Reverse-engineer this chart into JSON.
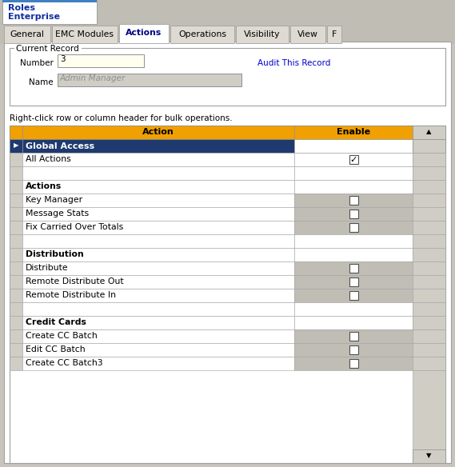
{
  "fig_width": 5.69,
  "fig_height": 5.84,
  "dpi": 100,
  "bg_color": "#c8c4bc",
  "tabs": [
    "General",
    "EMC Modules",
    "Actions",
    "Operations",
    "Visibility",
    "View",
    "F"
  ],
  "active_tab": "Actions",
  "header_bg_orange": "#f0a000",
  "global_access_bg": "#1e3a6e",
  "rows": [
    {
      "label": "All Actions",
      "checked": true,
      "bold": false,
      "enable_bg": "#ffffff"
    },
    {
      "label": "",
      "checked": false,
      "bold": false,
      "enable_bg": "#ffffff"
    },
    {
      "label": "Actions",
      "checked": false,
      "bold": true,
      "enable_bg": "#ffffff"
    },
    {
      "label": "Key Manager",
      "checked": false,
      "bold": false,
      "enable_bg": "#c0bdb5"
    },
    {
      "label": "Message Stats",
      "checked": false,
      "bold": false,
      "enable_bg": "#c0bdb5"
    },
    {
      "label": "Fix Carried Over Totals",
      "checked": false,
      "bold": false,
      "enable_bg": "#c0bdb5"
    },
    {
      "label": "",
      "checked": false,
      "bold": false,
      "enable_bg": "#ffffff"
    },
    {
      "label": "Distribution",
      "checked": false,
      "bold": true,
      "enable_bg": "#ffffff"
    },
    {
      "label": "Distribute",
      "checked": false,
      "bold": false,
      "enable_bg": "#c0bdb5"
    },
    {
      "label": "Remote Distribute Out",
      "checked": false,
      "bold": false,
      "enable_bg": "#c0bdb5"
    },
    {
      "label": "Remote Distribute In",
      "checked": false,
      "bold": false,
      "enable_bg": "#c0bdb5"
    },
    {
      "label": "",
      "checked": false,
      "bold": false,
      "enable_bg": "#ffffff"
    },
    {
      "label": "Credit Cards",
      "checked": false,
      "bold": true,
      "enable_bg": "#ffffff"
    },
    {
      "label": "Create CC Batch",
      "checked": false,
      "bold": false,
      "enable_bg": "#c0bdb5"
    },
    {
      "label": "Edit CC Batch",
      "checked": false,
      "bold": false,
      "enable_bg": "#c0bdb5"
    },
    {
      "label": "Create CC Batch3",
      "checked": false,
      "bold": false,
      "enable_bg": "#c0bdb5"
    }
  ]
}
